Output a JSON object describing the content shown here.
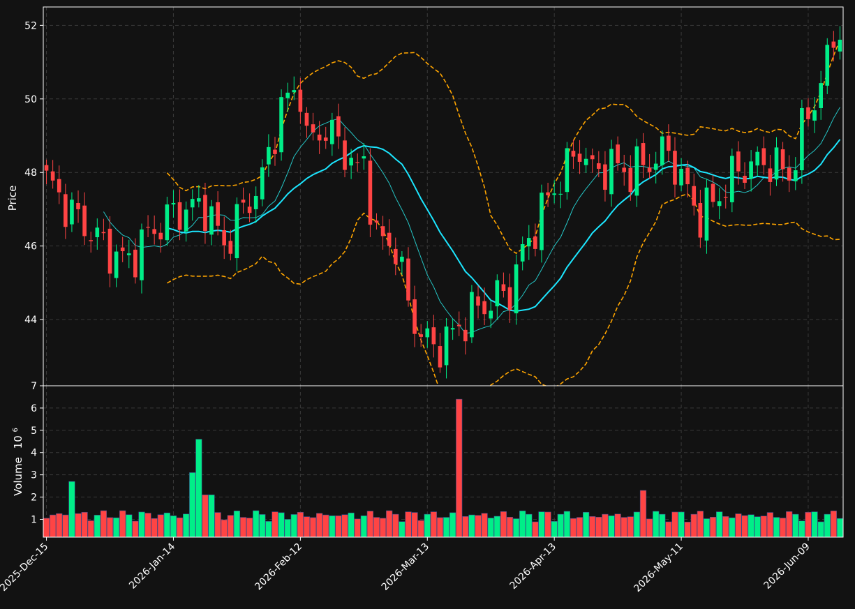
{
  "chart_data": {
    "type": "candlestick",
    "theme": {
      "background": "#121212",
      "up_color": "#00ee88",
      "down_color": "#ff4444",
      "ma_fast_color": "#25c6c6",
      "ma_slow_color": "#1ce6ff",
      "band_color": "#ffa500",
      "grid": "#3a3a3a"
    },
    "price_panel": {
      "ylabel": "Price",
      "ylim": [
        42.2,
        52.5
      ],
      "yticks": [
        44,
        46,
        48,
        50,
        52
      ],
      "grid": true
    },
    "volume_panel": {
      "ylabel": "Volume",
      "ylabel_exponent": "10",
      "ylabel_exponent_power": "6",
      "ylim": [
        0.2,
        7.0
      ],
      "yticks": [
        1,
        2,
        3,
        4,
        5,
        6,
        7
      ],
      "grid": true
    },
    "x_tick_labels": [
      {
        "index": 0,
        "label": "2025-Dec-15"
      },
      {
        "index": 20,
        "label": "2026-Jan-14"
      },
      {
        "index": 40,
        "label": "2026-Feb-12"
      },
      {
        "index": 60,
        "label": "2026-Mar-13"
      },
      {
        "index": 80,
        "label": "2026-Apr-13"
      },
      {
        "index": 100,
        "label": "2026-May-11"
      },
      {
        "index": 120,
        "label": "2026-Jun-09"
      }
    ],
    "candles": [],
    "volumes": [],
    "ma_fast": [],
    "ma_slow": [],
    "band_upper": [],
    "band_lower": []
  }
}
